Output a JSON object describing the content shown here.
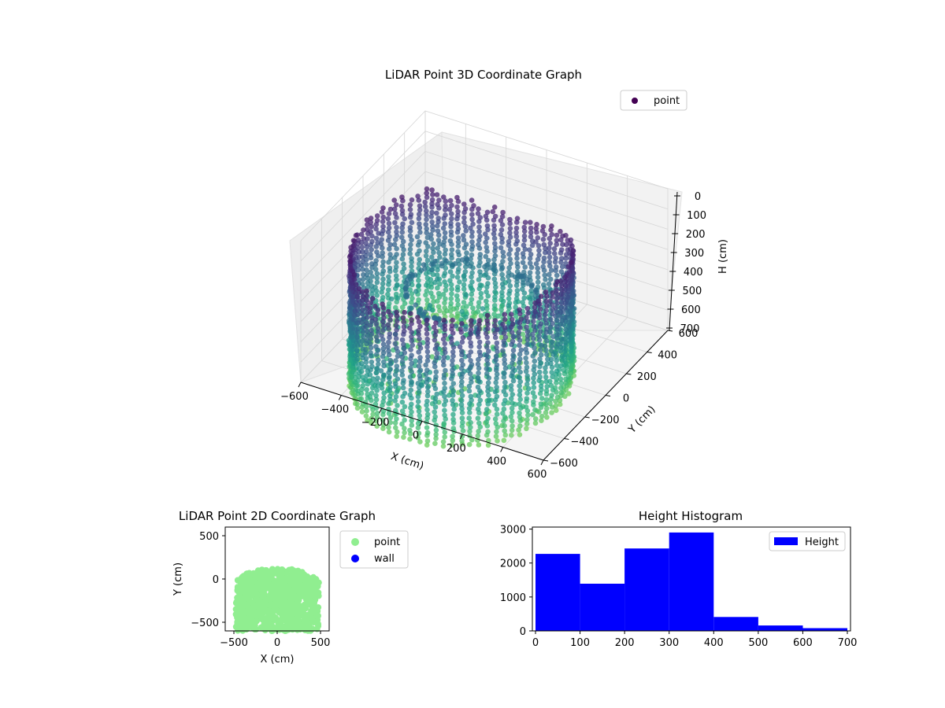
{
  "chart_data": [
    {
      "type": "scatter3d",
      "title": "LiDAR Point 3D Coordinate Graph",
      "xlabel": "X (cm)",
      "ylabel": "Y (cm)",
      "zlabel": "H (cm)",
      "xlim": [
        -600,
        600
      ],
      "ylim": [
        -600,
        600
      ],
      "zlim": [
        0,
        700
      ],
      "z_inverted": true,
      "x_ticks": [
        "−600",
        "−400",
        "−200",
        "0",
        "200",
        "400",
        "600"
      ],
      "y_ticks": [
        "−600",
        "−400",
        "−200",
        "0",
        "200",
        "400",
        "600"
      ],
      "z_ticks": [
        "0",
        "100",
        "200",
        "300",
        "400",
        "500",
        "600",
        "700"
      ],
      "colormap": "viridis",
      "legend": {
        "entries": [
          {
            "label": "point",
            "color": "#440154"
          }
        ],
        "placement": "upper-right"
      },
      "grid": true
    },
    {
      "type": "scatter",
      "title": "LiDAR Point 2D Coordinate Graph",
      "xlabel": "X (cm)",
      "ylabel": "Y (cm)",
      "xlim": [
        -600,
        600
      ],
      "ylim": [
        -600,
        600
      ],
      "x_ticks": [
        "−500",
        "0",
        "500"
      ],
      "y_ticks": [
        "−500",
        "0",
        "500"
      ],
      "series": [
        {
          "name": "point",
          "color": "#90ee90",
          "x_range": [
            -480,
            480
          ],
          "y_range": [
            -600,
            120
          ]
        },
        {
          "name": "wall",
          "color": "#0000ff",
          "points": []
        }
      ],
      "legend": {
        "placement": "outside-right"
      }
    },
    {
      "type": "bar",
      "title": "Height Histogram",
      "bins": [
        [
          0,
          100
        ],
        [
          100,
          200
        ],
        [
          200,
          300
        ],
        [
          300,
          400
        ],
        [
          400,
          500
        ],
        [
          500,
          600
        ],
        [
          600,
          700
        ]
      ],
      "values": [
        2270,
        1390,
        2430,
        2900,
        410,
        160,
        80
      ],
      "xlim": [
        0,
        700
      ],
      "ylim": [
        0,
        3000
      ],
      "x_ticks": [
        "0",
        "100",
        "200",
        "300",
        "400",
        "500",
        "600",
        "700"
      ],
      "y_ticks": [
        "0",
        "1000",
        "2000",
        "3000"
      ],
      "series": [
        {
          "name": "Height",
          "color": "#0000ff"
        }
      ],
      "legend": {
        "placement": "top-right"
      }
    }
  ]
}
